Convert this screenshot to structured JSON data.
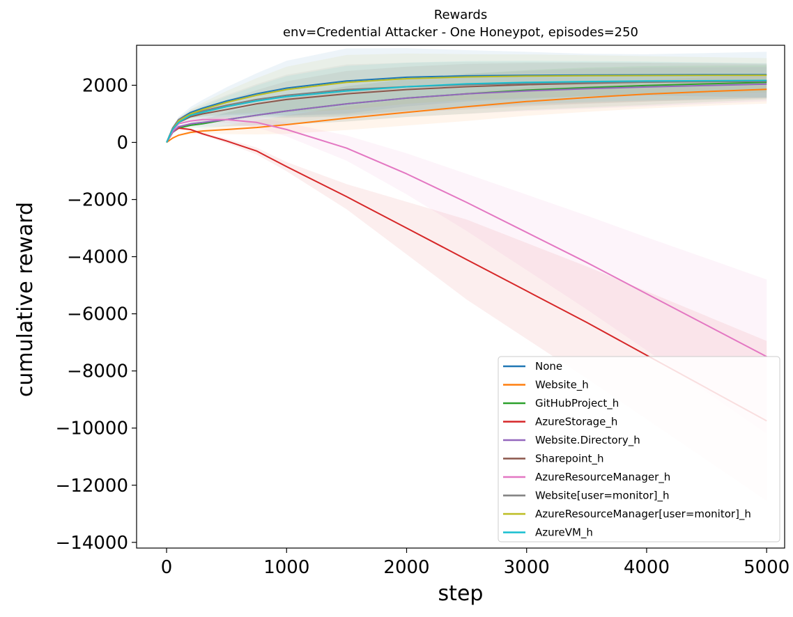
{
  "chart_data": {
    "type": "line",
    "title": "Rewards",
    "subtitle": "env=Credential Attacker - One Honeypot, episodes=250",
    "xlabel": "step",
    "ylabel": "cumulative reward",
    "xlim": [
      -250,
      5150
    ],
    "ylim": [
      -14200,
      3400
    ],
    "xticks": [
      0,
      1000,
      2000,
      3000,
      4000,
      5000
    ],
    "xtick_labels": [
      "0",
      "1000",
      "2000",
      "3000",
      "4000",
      "5000"
    ],
    "yticks": [
      2000,
      0,
      -2000,
      -4000,
      -6000,
      -8000,
      -10000,
      -12000,
      -14000
    ],
    "ytick_labels": [
      "2000",
      "0",
      "−2000",
      "−4000",
      "−6000",
      "−8000",
      "−10000",
      "−12000",
      "−14000"
    ],
    "grid": false,
    "legend_position": "lower-right",
    "x": [
      0,
      50,
      100,
      200,
      300,
      500,
      750,
      1000,
      1500,
      2000,
      2500,
      3000,
      3500,
      4000,
      4500,
      5000
    ],
    "series": [
      {
        "name": "None",
        "color": "#1f77b4",
        "values": [
          0,
          500,
          800,
          1050,
          1200,
          1450,
          1700,
          1900,
          2150,
          2280,
          2330,
          2350,
          2360,
          2365,
          2368,
          2370
        ],
        "band": [
          1200,
          900,
          700,
          800,
          800
        ]
      },
      {
        "name": "Website_h",
        "color": "#ff7f0e",
        "values": [
          0,
          150,
          250,
          350,
          400,
          450,
          520,
          620,
          850,
          1050,
          1250,
          1430,
          1570,
          1690,
          1780,
          1860
        ],
        "band": [
          400,
          500,
          500,
          500,
          500
        ]
      },
      {
        "name": "GitHubProject_h",
        "color": "#2ca02c",
        "values": [
          0,
          350,
          500,
          600,
          650,
          800,
          950,
          1100,
          1350,
          1550,
          1700,
          1830,
          1920,
          1990,
          2050,
          2100
        ],
        "band": [
          600,
          700,
          700,
          600,
          600
        ]
      },
      {
        "name": "AzureStorage_h",
        "color": "#d62728",
        "values": [
          0,
          350,
          500,
          450,
          300,
          50,
          -300,
          -850,
          -1900,
          -3000,
          -4100,
          -5200,
          -6300,
          -7450,
          -8600,
          -9750
        ],
        "band": [
          200,
          1400,
          2100,
          2800,
          3400
        ]
      },
      {
        "name": "Website.Directory_h",
        "color": "#9467bd",
        "values": [
          0,
          350,
          550,
          650,
          700,
          800,
          950,
          1100,
          1350,
          1550,
          1700,
          1800,
          1880,
          1940,
          1990,
          2040
        ],
        "band": [
          600,
          700,
          700,
          600,
          600
        ]
      },
      {
        "name": "Sharepoint_h",
        "color": "#8c564b",
        "values": [
          0,
          450,
          700,
          900,
          1000,
          1150,
          1350,
          1500,
          1700,
          1850,
          1950,
          2020,
          2070,
          2110,
          2140,
          2160
        ],
        "band": [
          800,
          800,
          700,
          600,
          600
        ]
      },
      {
        "name": "AzureResourceManager_h",
        "color": "#e377c2",
        "values": [
          0,
          400,
          650,
          750,
          800,
          800,
          700,
          450,
          -200,
          -1100,
          -2100,
          -3150,
          -4200,
          -5300,
          -6400,
          -7500
        ],
        "band": [
          300,
          1000,
          1800,
          2700,
          3500
        ]
      },
      {
        "name": "Website[user=monitor]_h",
        "color": "#7f7f7f",
        "values": [
          0,
          500,
          800,
          1000,
          1100,
          1300,
          1500,
          1650,
          1850,
          1950,
          2020,
          2060,
          2090,
          2110,
          2125,
          2135
        ],
        "band": [
          900,
          800,
          700,
          600,
          600
        ]
      },
      {
        "name": "AzureResourceManager[user=monitor]_h",
        "color": "#bcbd22",
        "values": [
          0,
          450,
          750,
          1000,
          1150,
          1400,
          1650,
          1850,
          2100,
          2230,
          2290,
          2320,
          2335,
          2340,
          2345,
          2350
        ],
        "band": [
          1000,
          800,
          700,
          600,
          600
        ]
      },
      {
        "name": "AzureVM_h",
        "color": "#17becf",
        "values": [
          0,
          450,
          700,
          950,
          1050,
          1250,
          1450,
          1600,
          1800,
          1950,
          2050,
          2100,
          2130,
          2150,
          2160,
          2170
        ],
        "band": [
          900,
          800,
          700,
          600,
          600
        ]
      }
    ]
  }
}
